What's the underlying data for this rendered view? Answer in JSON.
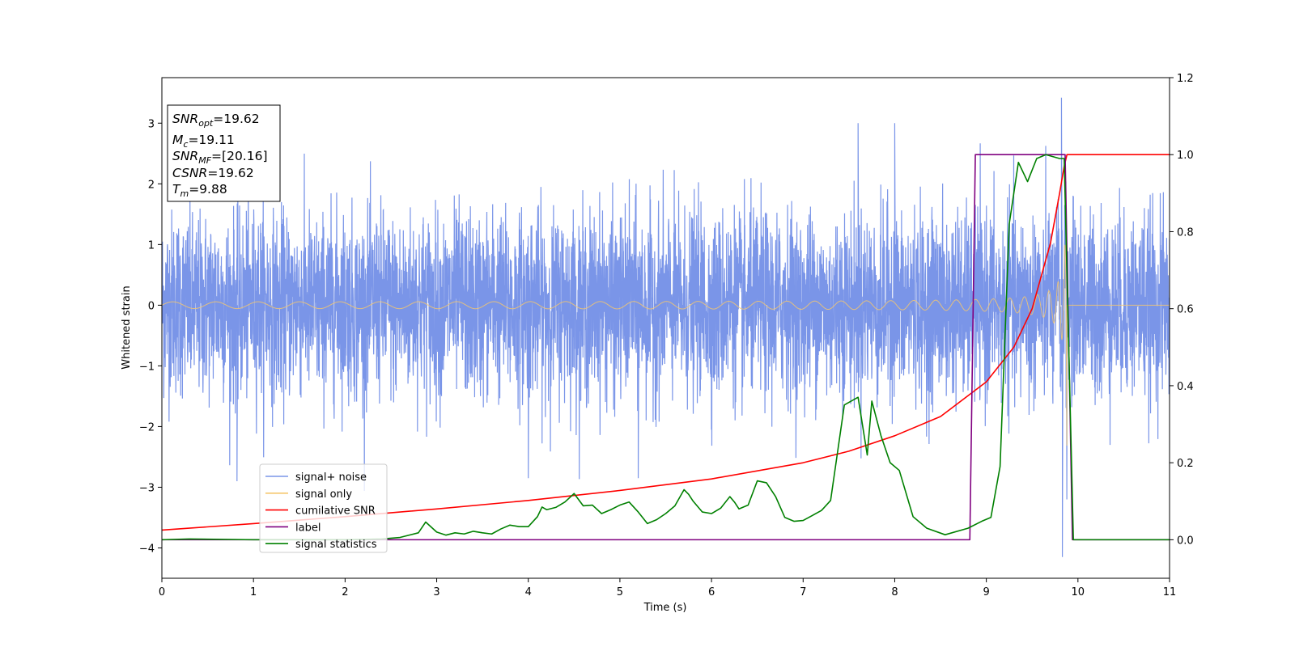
{
  "chart_data": {
    "type": "line",
    "title": "",
    "xlabel": "Time (s)",
    "ylabel": "Whitened strain",
    "xlim": [
      0,
      11
    ],
    "ylim": [
      -4.5,
      3.75
    ],
    "y2lim": [
      -0.1,
      1.2
    ],
    "xticks": [
      "0",
      "1",
      "2",
      "3",
      "4",
      "5",
      "6",
      "7",
      "8",
      "9",
      "10",
      "11"
    ],
    "yticks": [
      "3",
      "2",
      "1",
      "0",
      "−1",
      "−2",
      "−3",
      "−4"
    ],
    "y2ticks": [
      "1.2",
      "1.0",
      "0.8",
      "0.6",
      "0.4",
      "0.2",
      "0.0"
    ],
    "grid": false,
    "legend_position": "lower-left",
    "annotation": {
      "lines": [
        {
          "base": "SNR",
          "sub": "opt",
          "rest": "=19.62"
        },
        {
          "base": "M",
          "sub": "c",
          "rest": "=19.11"
        },
        {
          "base": "SNR",
          "sub": "MF",
          "rest": "=[20.16]"
        },
        {
          "base": "CSNR",
          "sub": "",
          "rest": "=19.62"
        },
        {
          "base": "T",
          "sub": "m",
          "rest": "=9.88"
        }
      ]
    },
    "series": [
      {
        "name": "signal+ noise",
        "color": "#7a95e8",
        "axis": "left",
        "description": "noise with std ~0.75, envelope peaks near +3.4 and -4.1 around t=9.8",
        "noise_std": 0.75,
        "extremes": [
          [
            7.6,
            3.0
          ],
          [
            8.0,
            3.0
          ],
          [
            9.82,
            3.42
          ],
          [
            9.83,
            -4.15
          ],
          [
            0.82,
            -2.9
          ],
          [
            5.2,
            -2.85
          ],
          [
            4.0,
            -2.85
          ]
        ]
      },
      {
        "name": "signal only",
        "color": "#f5c76e",
        "axis": "left",
        "description": "chirp from 0 to merger at 9.88 s, amplitude grows to ~2.5",
        "merger_time": 9.88,
        "start_amplitude": 0.05,
        "peak_amplitude": 2.5
      },
      {
        "name": "cumilative SNR",
        "color": "#ff0000",
        "axis": "right",
        "x": [
          0,
          1,
          2,
          3,
          4,
          5,
          6,
          7,
          7.5,
          8,
          8.5,
          9,
          9.3,
          9.5,
          9.7,
          9.8,
          9.85,
          9.88,
          10,
          11
        ],
        "y": [
          0.025,
          0.042,
          0.06,
          0.08,
          0.102,
          0.128,
          0.158,
          0.2,
          0.23,
          0.27,
          0.32,
          0.41,
          0.5,
          0.6,
          0.77,
          0.9,
          0.97,
          1.0,
          1.0,
          1.0
        ]
      },
      {
        "name": "label",
        "color": "#800080",
        "axis": "right",
        "x": [
          0,
          8.82,
          8.88,
          9.86,
          9.94,
          11
        ],
        "y": [
          0,
          0,
          1,
          1,
          0,
          0
        ]
      },
      {
        "name": "signal statistics",
        "color": "#008000",
        "axis": "right",
        "x": [
          0,
          0.3,
          1,
          1.5,
          2,
          2.4,
          2.6,
          2.8,
          2.88,
          3.0,
          3.1,
          3.2,
          3.3,
          3.4,
          3.5,
          3.6,
          3.7,
          3.8,
          3.9,
          4.0,
          4.1,
          4.15,
          4.2,
          4.3,
          4.4,
          4.5,
          4.6,
          4.7,
          4.8,
          4.9,
          5.0,
          5.1,
          5.2,
          5.3,
          5.4,
          5.5,
          5.6,
          5.7,
          5.75,
          5.8,
          5.9,
          6.0,
          6.1,
          6.2,
          6.25,
          6.3,
          6.4,
          6.5,
          6.6,
          6.7,
          6.8,
          6.9,
          7.0,
          7.1,
          7.2,
          7.3,
          7.45,
          7.6,
          7.7,
          7.75,
          7.85,
          7.95,
          8.05,
          8.2,
          8.35,
          8.55,
          8.8,
          8.95,
          9.05,
          9.15,
          9.25,
          9.35,
          9.45,
          9.55,
          9.65,
          9.8,
          9.85,
          9.95,
          11
        ],
        "y": [
          0.0,
          0.002,
          0.0,
          0.0,
          0.0,
          0.002,
          0.006,
          0.018,
          0.046,
          0.02,
          0.012,
          0.018,
          0.015,
          0.022,
          0.018,
          0.015,
          0.028,
          0.038,
          0.034,
          0.034,
          0.06,
          0.085,
          0.078,
          0.084,
          0.098,
          0.12,
          0.088,
          0.09,
          0.068,
          0.078,
          0.09,
          0.098,
          0.072,
          0.042,
          0.052,
          0.068,
          0.088,
          0.13,
          0.118,
          0.1,
          0.072,
          0.068,
          0.082,
          0.112,
          0.098,
          0.08,
          0.09,
          0.153,
          0.148,
          0.112,
          0.058,
          0.048,
          0.05,
          0.063,
          0.076,
          0.102,
          0.35,
          0.37,
          0.22,
          0.36,
          0.27,
          0.2,
          0.18,
          0.06,
          0.03,
          0.013,
          0.03,
          0.048,
          0.058,
          0.19,
          0.82,
          0.98,
          0.93,
          0.99,
          1.0,
          0.99,
          0.99,
          0.0,
          0.0
        ]
      }
    ]
  }
}
